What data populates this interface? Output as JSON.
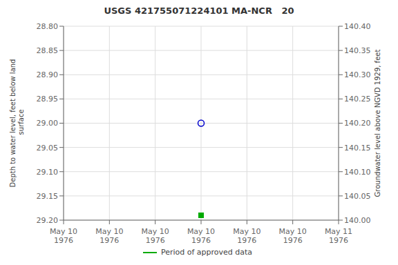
{
  "chart_data": {
    "type": "scatter",
    "title": "USGS 421755071224101 MA-NCR   20",
    "y_label": "Depth to water level, feet below land\n surface",
    "y2_label": "Groundwater level above NGVD 1929, feet",
    "categories": [
      "May 10\n1976",
      "May 10\n1976",
      "May 10\n1976",
      "May 10\n1976",
      "May 10\n1976",
      "May 10\n1976",
      "May 11\n1976"
    ],
    "series": [
      {
        "color": "#0000cc",
        "marker": "circle",
        "values": [
          null,
          null,
          null,
          29.0,
          null,
          null,
          null
        ]
      },
      {
        "name": "Period of approved data",
        "color": "#00aa00",
        "marker": "square",
        "values": [
          null,
          null,
          null,
          29.19,
          null,
          null,
          null
        ]
      }
    ],
    "ylim": [
      29.2,
      28.8
    ],
    "yticks": [
      {
        "value": 28.8,
        "label": "28.80"
      },
      {
        "value": 28.85,
        "label": "28.85"
      },
      {
        "value": 28.9,
        "label": "28.90"
      },
      {
        "value": 28.95,
        "label": "28.95"
      },
      {
        "value": 29.0,
        "label": "29.00"
      },
      {
        "value": 29.05,
        "label": "29.05"
      },
      {
        "value": 29.1,
        "label": "29.10"
      },
      {
        "value": 29.15,
        "label": "29.15"
      },
      {
        "value": 29.2,
        "label": "29.20"
      }
    ],
    "y2lim": [
      140.0,
      140.4
    ],
    "y2ticks": [
      {
        "value": 140.0,
        "label": "140.00"
      },
      {
        "value": 140.05,
        "label": "140.05"
      },
      {
        "value": 140.1,
        "label": "140.10"
      },
      {
        "value": 140.15,
        "label": "140.15"
      },
      {
        "value": 140.2,
        "label": "140.20"
      },
      {
        "value": 140.25,
        "label": "140.25"
      },
      {
        "value": 140.3,
        "label": "140.30"
      },
      {
        "value": 140.35,
        "label": "140.35"
      },
      {
        "value": 140.4,
        "label": "140.40"
      }
    ],
    "grid": true,
    "legend": "bottom"
  }
}
